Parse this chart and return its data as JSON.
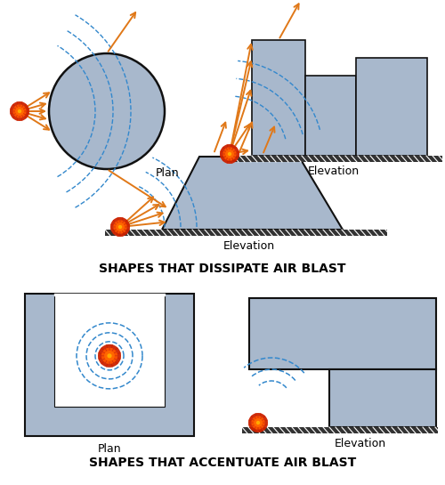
{
  "title_dissipate": "SHAPES THAT DISSIPATE AIR BLAST",
  "title_accentuate": "SHAPES THAT ACCENTUATE AIR BLAST",
  "label_plan": "Plan",
  "label_elevation": "Elevation",
  "building_color": "#a8b8cc",
  "building_edge": "#404040",
  "ground_color": "#333333",
  "blast_orange": "#e07818",
  "wave_blue": "#3388cc",
  "bg_color": "#ffffff",
  "fig_width": 5.0,
  "fig_height": 5.45
}
